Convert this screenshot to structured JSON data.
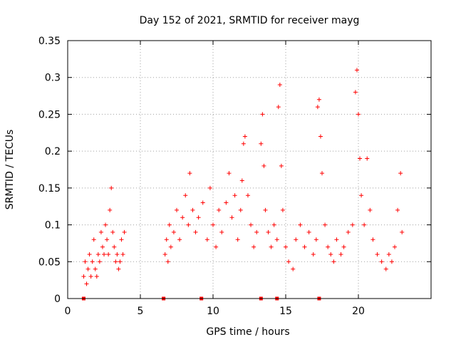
{
  "chart_data": {
    "type": "scatter",
    "title": "Day 152 of 2021, SRMTID for receiver mayg",
    "xlabel": "GPS time / hours",
    "ylabel": "SRMTID / TECUs",
    "xlim": [
      0,
      25
    ],
    "ylim": [
      0,
      0.35
    ],
    "xticks": [
      0,
      5,
      10,
      15,
      20
    ],
    "xtick_labels": [
      "0",
      "5",
      "10",
      "15",
      "20"
    ],
    "yticks": [
      0,
      0.05,
      0.1,
      0.15,
      0.2,
      0.25,
      0.3,
      0.35
    ],
    "ytick_labels": [
      "0",
      "0.05",
      "0.1",
      "0.15",
      "0.2",
      "0.25",
      "0.3",
      "0.35"
    ],
    "grid": true,
    "marker": "plus",
    "color": "#ff0000",
    "baseline_markers_x": [
      1.1,
      6.6,
      9.2,
      13.3,
      14.4,
      17.3
    ],
    "series": [
      {
        "name": "SRMTID",
        "points": [
          [
            1.1,
            0.03
          ],
          [
            1.2,
            0.05
          ],
          [
            1.3,
            0.02
          ],
          [
            1.4,
            0.04
          ],
          [
            1.5,
            0.06
          ],
          [
            1.6,
            0.03
          ],
          [
            1.7,
            0.05
          ],
          [
            1.8,
            0.08
          ],
          [
            1.9,
            0.04
          ],
          [
            2.0,
            0.03
          ],
          [
            2.1,
            0.06
          ],
          [
            2.2,
            0.05
          ],
          [
            2.3,
            0.09
          ],
          [
            2.4,
            0.07
          ],
          [
            2.5,
            0.06
          ],
          [
            2.6,
            0.1
          ],
          [
            2.7,
            0.08
          ],
          [
            2.8,
            0.06
          ],
          [
            2.9,
            0.12
          ],
          [
            3.0,
            0.15
          ],
          [
            3.1,
            0.09
          ],
          [
            3.2,
            0.07
          ],
          [
            3.3,
            0.05
          ],
          [
            3.4,
            0.06
          ],
          [
            3.5,
            0.04
          ],
          [
            3.6,
            0.05
          ],
          [
            3.7,
            0.08
          ],
          [
            3.8,
            0.06
          ],
          [
            3.9,
            0.09
          ],
          [
            6.7,
            0.06
          ],
          [
            6.8,
            0.08
          ],
          [
            6.9,
            0.05
          ],
          [
            7.0,
            0.1
          ],
          [
            7.1,
            0.07
          ],
          [
            7.3,
            0.09
          ],
          [
            7.5,
            0.12
          ],
          [
            7.7,
            0.08
          ],
          [
            7.9,
            0.11
          ],
          [
            8.1,
            0.14
          ],
          [
            8.3,
            0.1
          ],
          [
            8.4,
            0.17
          ],
          [
            8.6,
            0.12
          ],
          [
            8.8,
            0.09
          ],
          [
            9.0,
            0.11
          ],
          [
            9.3,
            0.13
          ],
          [
            9.6,
            0.08
          ],
          [
            9.8,
            0.15
          ],
          [
            10.0,
            0.1
          ],
          [
            10.2,
            0.07
          ],
          [
            10.4,
            0.12
          ],
          [
            10.6,
            0.09
          ],
          [
            10.9,
            0.13
          ],
          [
            11.1,
            0.17
          ],
          [
            11.3,
            0.11
          ],
          [
            11.5,
            0.14
          ],
          [
            11.7,
            0.08
          ],
          [
            11.9,
            0.12
          ],
          [
            12.0,
            0.16
          ],
          [
            12.1,
            0.21
          ],
          [
            12.2,
            0.22
          ],
          [
            12.4,
            0.14
          ],
          [
            12.6,
            0.1
          ],
          [
            12.8,
            0.07
          ],
          [
            13.0,
            0.09
          ],
          [
            13.3,
            0.21
          ],
          [
            13.4,
            0.25
          ],
          [
            13.5,
            0.18
          ],
          [
            13.6,
            0.12
          ],
          [
            13.8,
            0.09
          ],
          [
            14.0,
            0.07
          ],
          [
            14.2,
            0.1
          ],
          [
            14.4,
            0.08
          ],
          [
            14.5,
            0.26
          ],
          [
            14.6,
            0.29
          ],
          [
            14.7,
            0.18
          ],
          [
            14.8,
            0.12
          ],
          [
            15.0,
            0.07
          ],
          [
            15.2,
            0.05
          ],
          [
            15.5,
            0.04
          ],
          [
            15.7,
            0.08
          ],
          [
            16.0,
            0.1
          ],
          [
            16.3,
            0.07
          ],
          [
            16.6,
            0.09
          ],
          [
            16.9,
            0.06
          ],
          [
            17.1,
            0.08
          ],
          [
            17.2,
            0.26
          ],
          [
            17.3,
            0.27
          ],
          [
            17.4,
            0.22
          ],
          [
            17.5,
            0.17
          ],
          [
            17.7,
            0.1
          ],
          [
            17.9,
            0.07
          ],
          [
            18.1,
            0.06
          ],
          [
            18.3,
            0.05
          ],
          [
            18.5,
            0.08
          ],
          [
            18.8,
            0.06
          ],
          [
            19.0,
            0.07
          ],
          [
            19.3,
            0.09
          ],
          [
            19.6,
            0.1
          ],
          [
            19.8,
            0.28
          ],
          [
            19.9,
            0.31
          ],
          [
            20.0,
            0.25
          ],
          [
            20.1,
            0.19
          ],
          [
            20.2,
            0.14
          ],
          [
            20.4,
            0.1
          ],
          [
            20.6,
            0.19
          ],
          [
            20.8,
            0.12
          ],
          [
            21.0,
            0.08
          ],
          [
            21.3,
            0.06
          ],
          [
            21.6,
            0.05
          ],
          [
            21.9,
            0.04
          ],
          [
            22.1,
            0.06
          ],
          [
            22.3,
            0.05
          ],
          [
            22.5,
            0.07
          ],
          [
            22.7,
            0.12
          ],
          [
            22.9,
            0.17
          ],
          [
            23.0,
            0.09
          ]
        ]
      }
    ]
  }
}
